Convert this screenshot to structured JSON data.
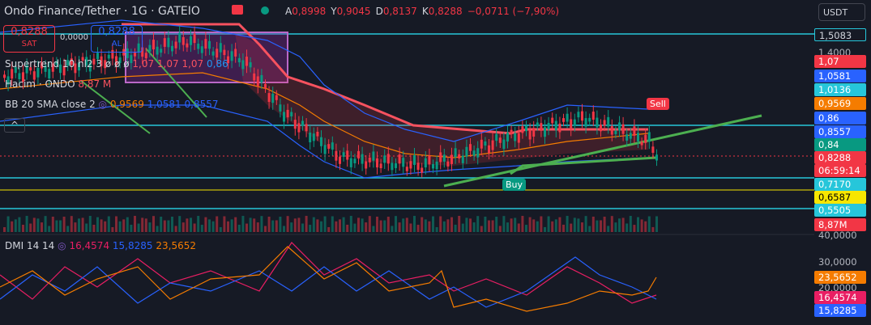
{
  "header": {
    "title": "Ondo Finance/Tether · 1G · GATEIO",
    "ohlc": [
      {
        "key": "A",
        "value": "0,8998"
      },
      {
        "key": "Y",
        "value": "0,9045"
      },
      {
        "key": "D",
        "value": "0,8137"
      },
      {
        "key": "K",
        "value": "0,8288"
      }
    ],
    "change": "−0,0711 (−7,90%)",
    "currency": "USDT"
  },
  "trade": {
    "sell_price": "0,8288",
    "sell_label": "SAT",
    "spread": "0,0000",
    "buy_price": "0,8288",
    "buy_label": "AL"
  },
  "indicators": [
    {
      "name": "Supertrend 10 hl2 3",
      "symbols": "ø ø ø",
      "values": [
        "1,07",
        "1,07",
        "1,07",
        "0,86"
      ]
    },
    {
      "name": "Hacim · ONDO",
      "values": [
        "8,87 M"
      ]
    },
    {
      "name": "BB 20 SMA close 2",
      "values": [
        "0,9569",
        "1,0581",
        "0,8557"
      ]
    }
  ],
  "dmi": {
    "name": "DMI 14 14",
    "values": [
      "16,4574",
      "15,8285",
      "23,5652"
    ]
  },
  "signals": {
    "sell": "Sell",
    "buy": "Buy"
  },
  "right_axis": [
    "1,5083",
    "1,4000",
    "1,07",
    "1,0581",
    "1,0136",
    "0,9569",
    "0,86",
    "0,8557",
    "0,84",
    "0,8288",
    "06:59:14",
    "0,7170",
    "0,6587",
    "0,5505",
    "8,87M",
    "40,0000",
    "30,0000",
    "23,5652",
    "20,0000",
    "16,4574",
    "15,8285"
  ]
}
